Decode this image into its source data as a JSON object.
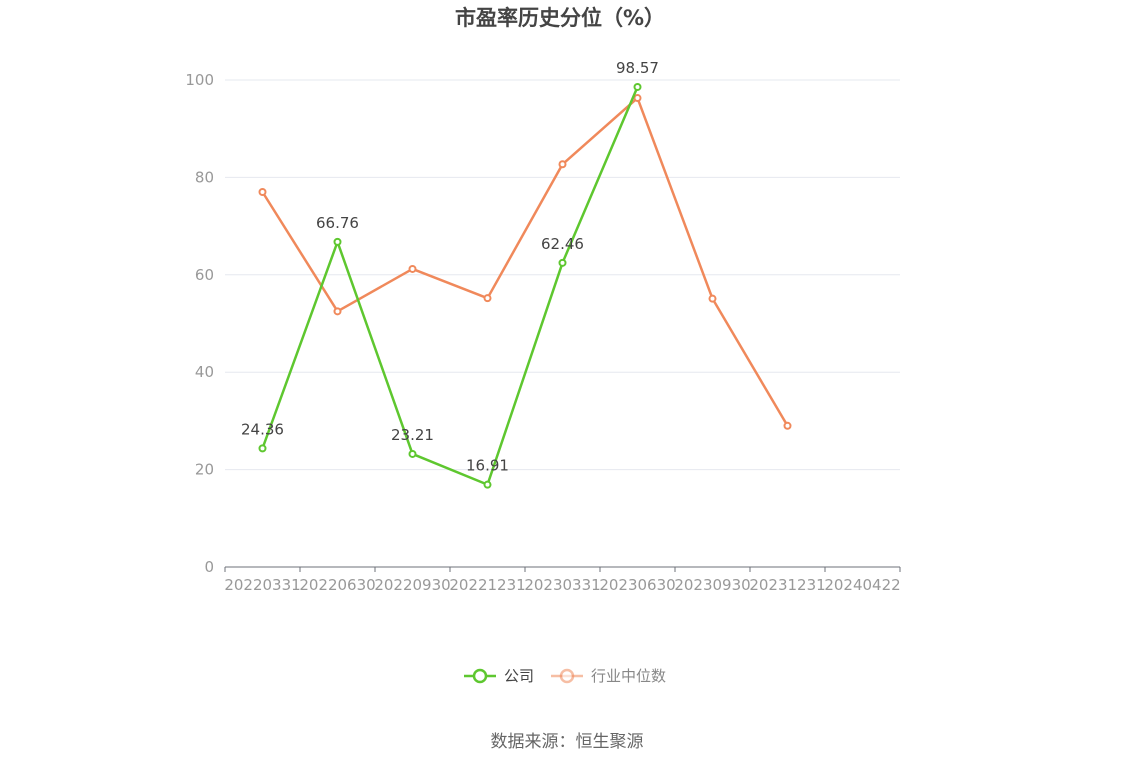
{
  "chart_data": {
    "type": "line",
    "title": "市盈率历史分位（%）",
    "categories": [
      "20220331",
      "20220630",
      "20220930",
      "20221231",
      "20230331",
      "20230630",
      "20230930",
      "20231231",
      "20240422"
    ],
    "ylim": [
      0,
      100
    ],
    "yticks": [
      0,
      20,
      40,
      60,
      80,
      100
    ],
    "grid": true,
    "legend_position": "bottom",
    "series": [
      {
        "name": "公司",
        "color": "#5ec72f",
        "values": [
          24.36,
          66.76,
          23.21,
          16.91,
          62.46,
          98.57,
          null,
          null,
          null
        ],
        "labels": [
          "24.36",
          "66.76",
          "23.21",
          "16.91",
          "62.46",
          "98.57",
          "",
          "",
          ""
        ]
      },
      {
        "name": "行业中位数",
        "color": "#f0895b",
        "values": [
          77.0,
          52.5,
          61.2,
          55.2,
          82.7,
          96.3,
          55.1,
          29.0,
          null
        ]
      }
    ],
    "source": "数据来源：恒生聚源"
  }
}
